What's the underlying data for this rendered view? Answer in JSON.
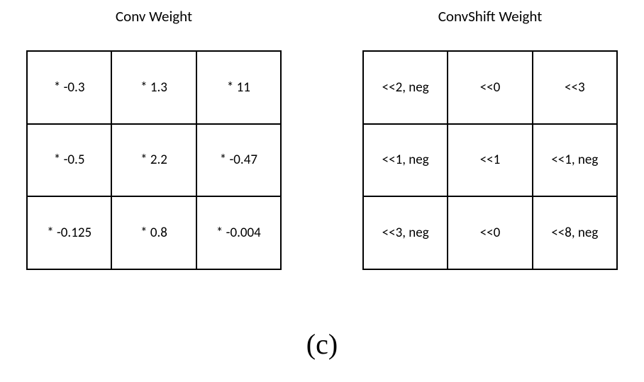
{
  "left_panel": {
    "title": "Conv Weight",
    "grid": {
      "type": "table",
      "rows": 3,
      "cols": 3,
      "cell_fontsize": 19,
      "border_color": "#000000",
      "background_color": "#ffffff",
      "cells": [
        "* -0.3",
        "* 1.3",
        "* 11",
        "* -0.5",
        "* 2.2",
        "* -0.47",
        "* -0.125",
        "* 0.8",
        "* -0.004"
      ]
    }
  },
  "right_panel": {
    "title": "ConvShift Weight",
    "grid": {
      "type": "table",
      "rows": 3,
      "cols": 3,
      "cell_fontsize": 19,
      "border_color": "#000000",
      "background_color": "#ffffff",
      "cells": [
        "<<2, neg",
        "<<0",
        "<<3",
        "<<1, neg",
        "<<1",
        "<<1, neg",
        "<<3, neg",
        "<<0",
        "<<8, neg"
      ]
    }
  },
  "caption": "(c)",
  "title_fontsize": 21,
  "caption_fontsize": 40,
  "caption_font": "Times New Roman"
}
